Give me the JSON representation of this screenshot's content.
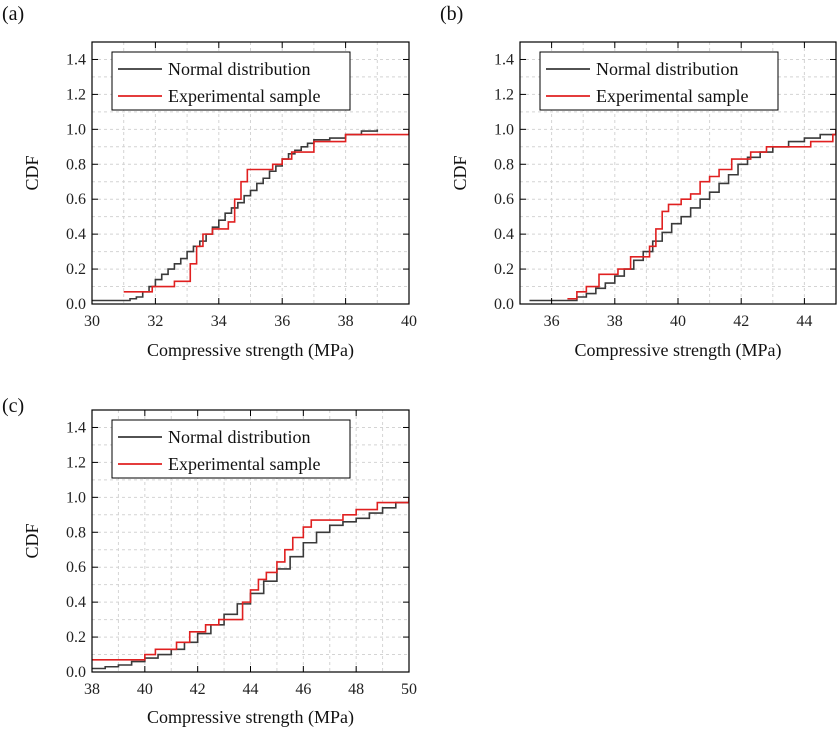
{
  "figure": {
    "description_panels": [
      "(a)",
      "(b)",
      "(c)"
    ]
  },
  "colors": {
    "normal": "#3a3a3a",
    "experimental": "#e02020",
    "grid": "#d4d4d4",
    "axis": "#000000"
  },
  "chart_data": [
    {
      "type": "line",
      "panel_label": "(a)",
      "xlabel": "Compressive strength (MPa)",
      "ylabel": "CDF",
      "xlim": [
        30,
        40
      ],
      "ylim": [
        0,
        1.5
      ],
      "xticks": [
        30,
        32,
        34,
        36,
        38,
        40
      ],
      "yticks": [
        0.0,
        0.2,
        0.4,
        0.6,
        0.8,
        1.0,
        1.2,
        1.4
      ],
      "ytick_labels": [
        "0.0",
        "0.2",
        "0.4",
        "0.6",
        "0.8",
        "1.0",
        "1.2",
        "1.4"
      ],
      "grid": true,
      "legend": [
        "Normal distribution",
        "Experimental sample"
      ],
      "legend_position": "top",
      "series": [
        {
          "name": "Normal distribution",
          "color_key": "normal",
          "x": [
            30.0,
            31.0,
            31.2,
            31.4,
            31.6,
            31.8,
            32.0,
            32.2,
            32.4,
            32.6,
            32.8,
            33.0,
            33.2,
            33.4,
            33.6,
            33.8,
            34.0,
            34.2,
            34.4,
            34.6,
            34.8,
            35.0,
            35.2,
            35.4,
            35.6,
            35.8,
            36.0,
            36.2,
            36.4,
            36.6,
            36.8,
            37.0,
            37.5,
            38.0,
            38.5,
            39.0
          ],
          "y": [
            0.02,
            0.02,
            0.03,
            0.04,
            0.07,
            0.1,
            0.14,
            0.17,
            0.2,
            0.23,
            0.26,
            0.3,
            0.33,
            0.36,
            0.4,
            0.44,
            0.48,
            0.52,
            0.55,
            0.58,
            0.62,
            0.65,
            0.69,
            0.72,
            0.76,
            0.79,
            0.83,
            0.86,
            0.88,
            0.9,
            0.92,
            0.94,
            0.95,
            0.97,
            0.99,
            1.0
          ]
        },
        {
          "name": "Experimental sample",
          "color_key": "experimental",
          "step": true,
          "x": [
            31.0,
            31.9,
            32.6,
            33.1,
            33.3,
            33.5,
            33.8,
            34.3,
            34.5,
            34.7,
            34.9,
            35.2,
            35.7,
            36.0,
            36.3,
            37.0,
            38.0,
            40.0
          ],
          "y": [
            0.07,
            0.1,
            0.13,
            0.23,
            0.33,
            0.4,
            0.43,
            0.47,
            0.6,
            0.7,
            0.77,
            0.77,
            0.8,
            0.83,
            0.87,
            0.93,
            0.97,
            1.0
          ]
        }
      ]
    },
    {
      "type": "line",
      "panel_label": "(b)",
      "xlabel": "Compressive strength (MPa)",
      "ylabel": "CDF",
      "xlim": [
        35,
        45
      ],
      "ylim": [
        0,
        1.5
      ],
      "xticks": [
        36,
        38,
        40,
        42,
        44
      ],
      "yticks": [
        0.0,
        0.2,
        0.4,
        0.6,
        0.8,
        1.0,
        1.2,
        1.4
      ],
      "ytick_labels": [
        "0.0",
        "0.2",
        "0.4",
        "0.6",
        "0.8",
        "1.0",
        "1.2",
        "1.4"
      ],
      "grid": true,
      "legend": [
        "Normal distribution",
        "Experimental sample"
      ],
      "legend_position": "top",
      "series": [
        {
          "name": "Normal distribution",
          "color_key": "normal",
          "x": [
            35.3,
            36.5,
            36.8,
            37.1,
            37.4,
            37.7,
            38.0,
            38.3,
            38.6,
            38.9,
            39.2,
            39.5,
            39.8,
            40.1,
            40.4,
            40.7,
            41.0,
            41.3,
            41.6,
            41.9,
            42.2,
            42.6,
            43.0,
            43.5,
            44.0,
            44.5,
            45.0
          ],
          "y": [
            0.02,
            0.02,
            0.04,
            0.06,
            0.09,
            0.12,
            0.16,
            0.2,
            0.25,
            0.3,
            0.36,
            0.41,
            0.46,
            0.5,
            0.55,
            0.6,
            0.64,
            0.69,
            0.74,
            0.8,
            0.84,
            0.87,
            0.9,
            0.93,
            0.95,
            0.97,
            1.0
          ]
        },
        {
          "name": "Experimental sample",
          "color_key": "experimental",
          "step": true,
          "x": [
            36.5,
            36.8,
            37.1,
            37.5,
            38.1,
            38.5,
            39.1,
            39.3,
            39.5,
            39.7,
            40.1,
            40.4,
            40.7,
            41.0,
            41.3,
            41.7,
            42.3,
            42.8,
            44.2,
            44.9,
            45.0
          ],
          "y": [
            0.03,
            0.07,
            0.1,
            0.17,
            0.2,
            0.27,
            0.33,
            0.43,
            0.53,
            0.57,
            0.6,
            0.63,
            0.7,
            0.73,
            0.77,
            0.83,
            0.87,
            0.9,
            0.93,
            0.97,
            1.0
          ]
        }
      ]
    },
    {
      "type": "line",
      "panel_label": "(c)",
      "xlabel": "Compressive strength (MPa)",
      "ylabel": "CDF",
      "xlim": [
        38,
        50
      ],
      "ylim": [
        0,
        1.5
      ],
      "xticks": [
        38,
        40,
        42,
        44,
        46,
        48,
        50
      ],
      "yticks": [
        0.0,
        0.2,
        0.4,
        0.6,
        0.8,
        1.0,
        1.2,
        1.4
      ],
      "ytick_labels": [
        "0.0",
        "0.2",
        "0.4",
        "0.6",
        "0.8",
        "1.0",
        "1.2",
        "1.4"
      ],
      "grid": true,
      "legend": [
        "Normal distribution",
        "Experimental sample"
      ],
      "legend_position": "top",
      "series": [
        {
          "name": "Normal distribution",
          "color_key": "normal",
          "x": [
            38.0,
            38.5,
            39.0,
            39.5,
            40.0,
            40.5,
            41.0,
            41.5,
            42.0,
            42.5,
            43.0,
            43.5,
            44.0,
            44.5,
            45.0,
            45.5,
            46.0,
            46.5,
            47.0,
            47.5,
            48.0,
            48.5,
            49.0,
            49.5,
            50.0
          ],
          "y": [
            0.02,
            0.03,
            0.04,
            0.06,
            0.08,
            0.1,
            0.13,
            0.17,
            0.22,
            0.27,
            0.33,
            0.39,
            0.45,
            0.52,
            0.59,
            0.66,
            0.74,
            0.8,
            0.84,
            0.86,
            0.88,
            0.91,
            0.94,
            0.97,
            1.0
          ]
        },
        {
          "name": "Experimental sample",
          "color_key": "experimental",
          "step": true,
          "x": [
            38.0,
            40.0,
            40.4,
            41.2,
            41.7,
            42.3,
            42.8,
            43.7,
            44.0,
            44.3,
            44.6,
            45.0,
            45.3,
            45.6,
            46.0,
            46.3,
            47.5,
            48.0,
            48.8,
            50.0
          ],
          "y": [
            0.07,
            0.1,
            0.13,
            0.17,
            0.23,
            0.27,
            0.3,
            0.4,
            0.47,
            0.53,
            0.57,
            0.63,
            0.7,
            0.77,
            0.83,
            0.87,
            0.9,
            0.93,
            0.97,
            1.0
          ]
        }
      ]
    }
  ]
}
